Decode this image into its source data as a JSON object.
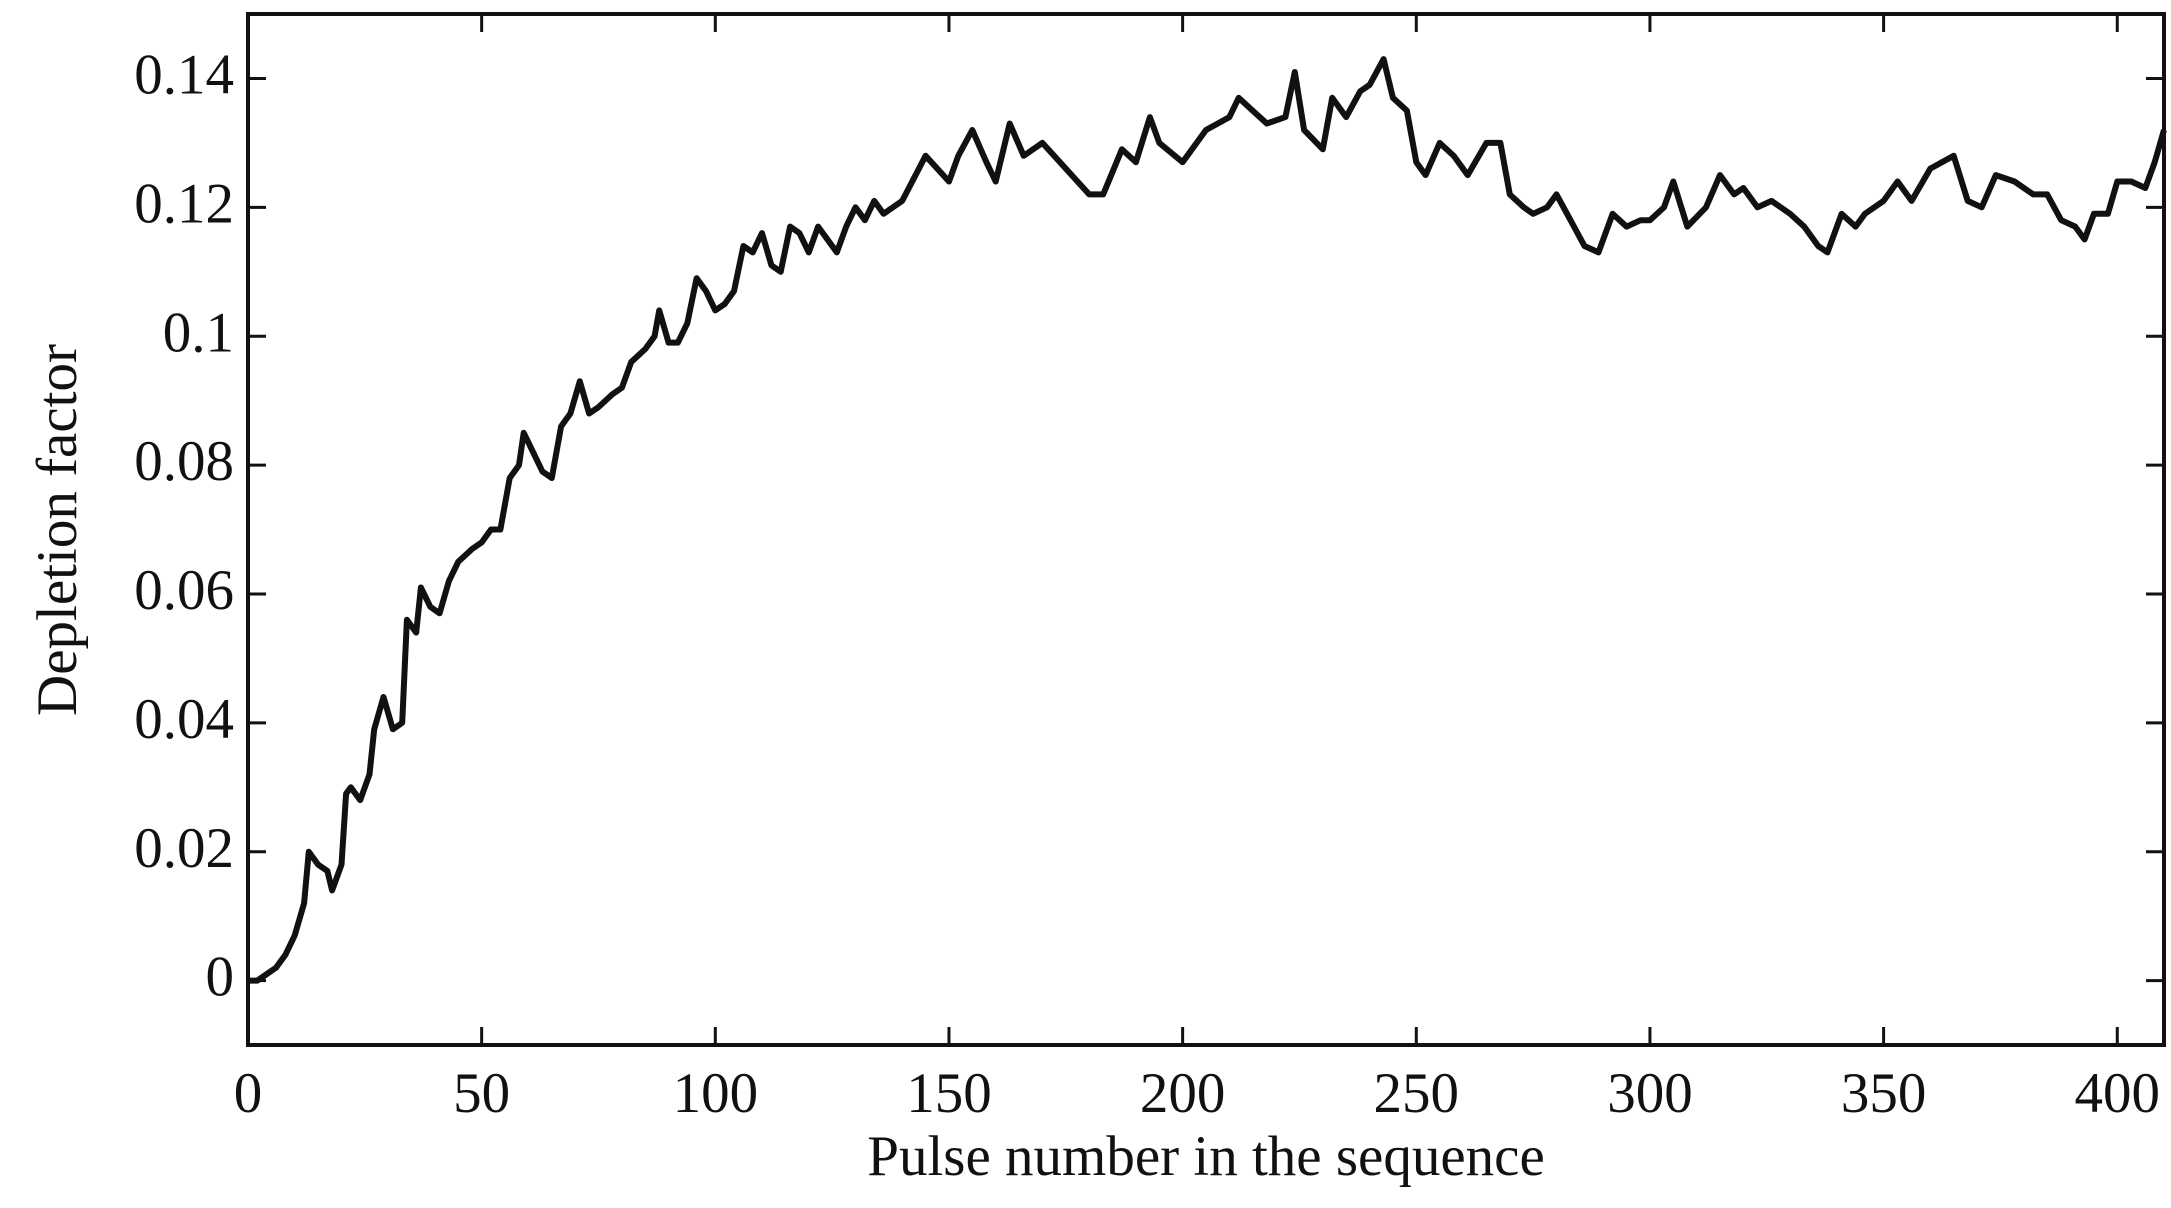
{
  "chart_data": {
    "type": "line",
    "x_label": "Pulse number in the sequence",
    "y_label": "Depletion factor",
    "xlim": [
      0,
      410
    ],
    "ylim": [
      -0.01,
      0.15
    ],
    "xticks": [
      0,
      50,
      100,
      150,
      200,
      250,
      300,
      350,
      400
    ],
    "yticks": [
      0,
      0.02,
      0.04,
      0.06,
      0.08,
      0.1,
      0.12,
      0.14
    ],
    "series": [
      {
        "name": "Depletion factor",
        "color": "#111111",
        "x": [
          0,
          2,
          4,
          6,
          8,
          10,
          12,
          13,
          15,
          17,
          18,
          20,
          21,
          22,
          24,
          26,
          27,
          29,
          31,
          33,
          34,
          36,
          37,
          39,
          41,
          43,
          45,
          48,
          50,
          52,
          54,
          56,
          58,
          59,
          61,
          63,
          65,
          67,
          69,
          71,
          73,
          75,
          78,
          80,
          82,
          85,
          87,
          88,
          90,
          92,
          94,
          96,
          98,
          100,
          102,
          104,
          106,
          108,
          110,
          112,
          114,
          116,
          118,
          120,
          122,
          124,
          126,
          128,
          130,
          132,
          134,
          136,
          138,
          140,
          145,
          150,
          152,
          155,
          158,
          160,
          163,
          166,
          170,
          175,
          180,
          183,
          187,
          190,
          193,
          195,
          200,
          205,
          210,
          212,
          215,
          218,
          222,
          224,
          226,
          230,
          232,
          235,
          238,
          240,
          243,
          245,
          248,
          250,
          252,
          255,
          258,
          261,
          265,
          268,
          270,
          273,
          275,
          278,
          280,
          283,
          286,
          289,
          292,
          295,
          298,
          300,
          303,
          305,
          308,
          312,
          315,
          318,
          320,
          323,
          326,
          330,
          333,
          336,
          338,
          341,
          344,
          346,
          350,
          353,
          356,
          360,
          365,
          368,
          371,
          374,
          378,
          382,
          385,
          388,
          391,
          393,
          395,
          398,
          400,
          403,
          406,
          408,
          410
        ],
        "values": [
          0,
          0.0,
          0.001,
          0.002,
          0.004,
          0.007,
          0.012,
          0.02,
          0.018,
          0.017,
          0.014,
          0.018,
          0.029,
          0.03,
          0.028,
          0.032,
          0.039,
          0.044,
          0.039,
          0.04,
          0.056,
          0.054,
          0.061,
          0.058,
          0.057,
          0.062,
          0.065,
          0.067,
          0.068,
          0.07,
          0.07,
          0.078,
          0.08,
          0.085,
          0.082,
          0.079,
          0.078,
          0.086,
          0.088,
          0.093,
          0.088,
          0.089,
          0.091,
          0.092,
          0.096,
          0.098,
          0.1,
          0.104,
          0.099,
          0.099,
          0.102,
          0.109,
          0.107,
          0.104,
          0.105,
          0.107,
          0.114,
          0.113,
          0.116,
          0.111,
          0.11,
          0.117,
          0.116,
          0.113,
          0.117,
          0.115,
          0.113,
          0.117,
          0.12,
          0.118,
          0.121,
          0.119,
          0.12,
          0.121,
          0.128,
          0.124,
          0.128,
          0.132,
          0.127,
          0.124,
          0.133,
          0.128,
          0.13,
          0.126,
          0.122,
          0.122,
          0.129,
          0.127,
          0.134,
          0.13,
          0.127,
          0.132,
          0.134,
          0.137,
          0.135,
          0.133,
          0.134,
          0.141,
          0.132,
          0.129,
          0.137,
          0.134,
          0.138,
          0.139,
          0.143,
          0.137,
          0.135,
          0.127,
          0.125,
          0.13,
          0.128,
          0.125,
          0.13,
          0.13,
          0.122,
          0.12,
          0.119,
          0.12,
          0.122,
          0.118,
          0.114,
          0.113,
          0.119,
          0.117,
          0.118,
          0.118,
          0.12,
          0.124,
          0.117,
          0.12,
          0.125,
          0.122,
          0.123,
          0.12,
          0.121,
          0.119,
          0.117,
          0.114,
          0.113,
          0.119,
          0.117,
          0.119,
          0.121,
          0.124,
          0.121,
          0.126,
          0.128,
          0.121,
          0.12,
          0.125,
          0.124,
          0.122,
          0.122,
          0.118,
          0.117,
          0.115,
          0.119,
          0.119,
          0.124,
          0.124,
          0.123,
          0.127,
          0.132
        ]
      }
    ]
  }
}
